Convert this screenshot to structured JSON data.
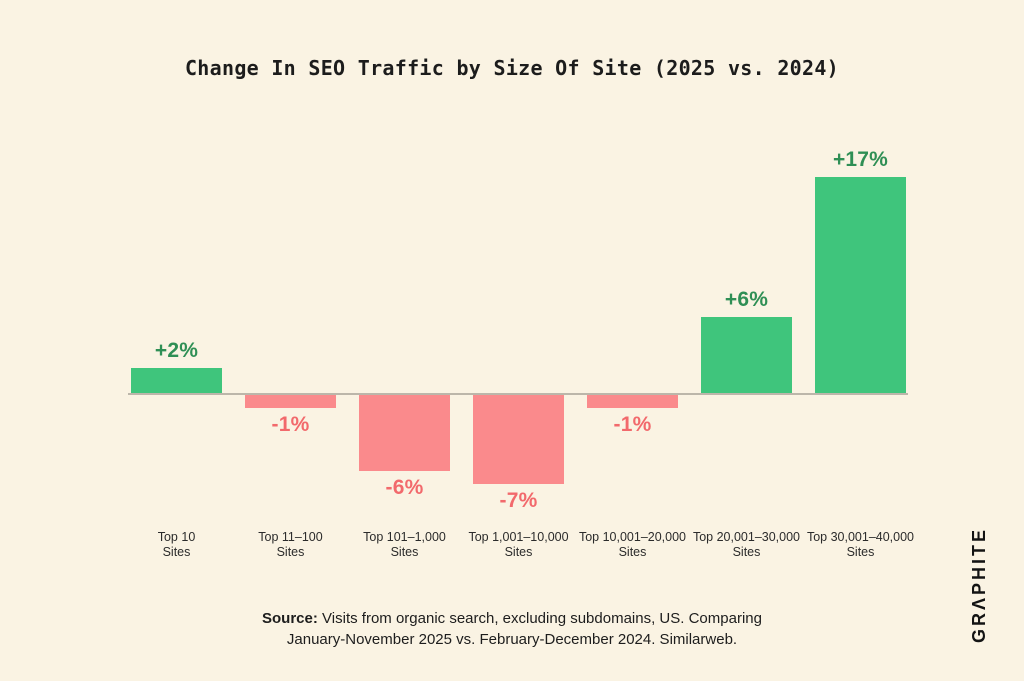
{
  "page": {
    "background_color": "#FAF3E3",
    "text_color": "#1c1c1c"
  },
  "chart_data": {
    "type": "bar",
    "title": "Change In SEO Traffic by Size Of Site (2025 vs. 2024)",
    "categories": [
      "Top 10",
      "Top 11–100",
      "Top 101–1,000",
      "Top 1,001–10,000",
      "Top 10,001–20,000",
      "Top 20,001–30,000",
      "Top 30,001–40,000"
    ],
    "category_unit": "Sites",
    "values": [
      2,
      -1,
      -6,
      -7,
      -1,
      6,
      17
    ],
    "value_labels": [
      "+2%",
      "-1%",
      "-6%",
      "-7%",
      "-1%",
      "+6%",
      "+17%"
    ],
    "unit": "percent change",
    "xlabel": "",
    "ylabel": "",
    "ylim": [
      -9,
      19
    ],
    "grid": false,
    "legend": "none",
    "baseline": 0,
    "colors": {
      "positive_bar": "#3FC57C",
      "negative_bar": "#FA8A8C",
      "positive_label": "#2F8F55",
      "negative_label": "#F2696C",
      "baseline_line": "#BCB6AA"
    }
  },
  "footer": {
    "source_prefix": "Source:",
    "source_line1": "Visits from organic search, excluding subdomains, US. Comparing",
    "source_line2": "January-November 2025 vs. February-December 2024. Similarweb."
  },
  "branding": {
    "logo_text": "GRΛPHITE"
  }
}
